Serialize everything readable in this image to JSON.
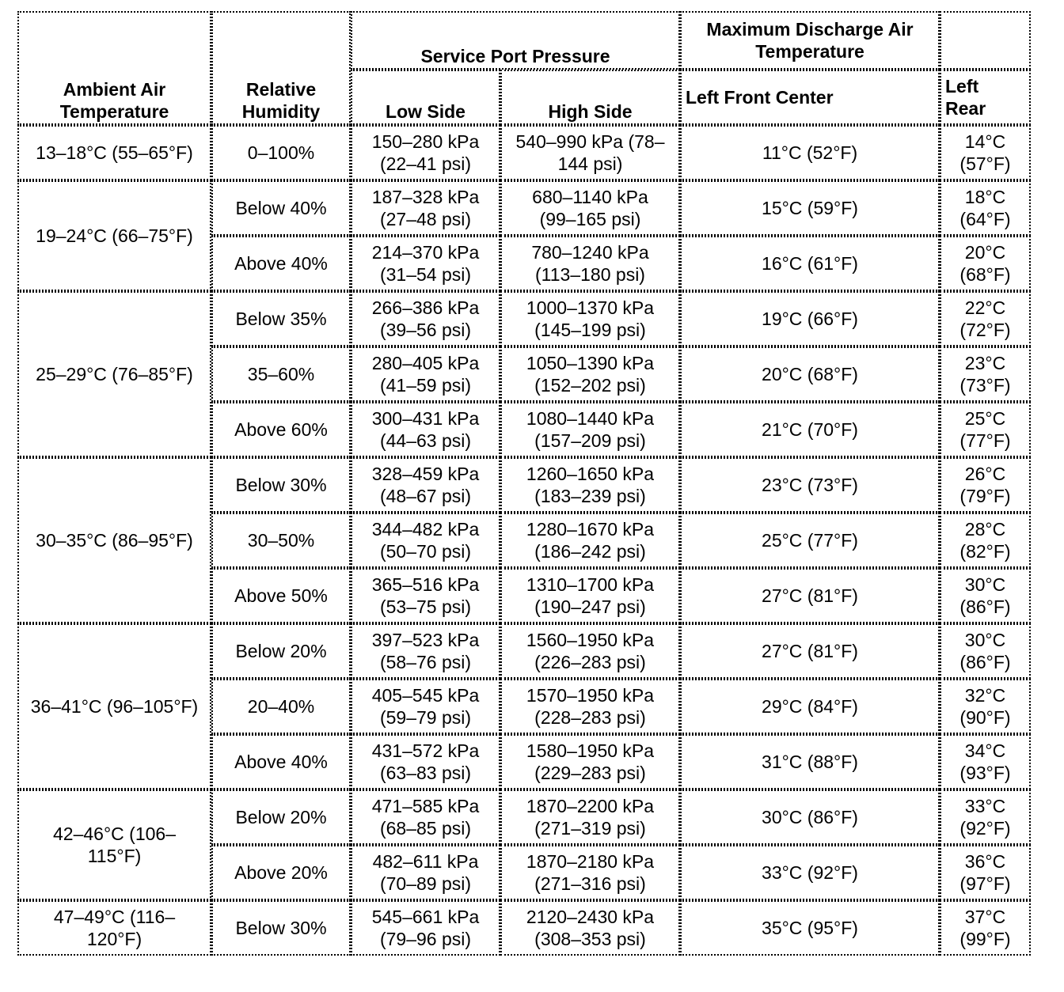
{
  "table": {
    "headers": {
      "ambient": "Ambient Air\nTemperature",
      "humidity": "Relative\nHumidity",
      "service_port": "Service Port Pressure",
      "max_discharge": "Maximum Discharge Air\nTemperature",
      "low_side": "Low Side",
      "high_side": "High Side",
      "left_front_center": "Left Front Center",
      "left_rear": "Left\nRear"
    },
    "groups": [
      {
        "ambient": "13–18°C (55–65°F)",
        "rows": [
          {
            "humidity": "0–100%",
            "low": "150–280 kPa\n(22–41 psi)",
            "high": "540–990 kPa (78–\n144 psi)",
            "lfc": "11°C (52°F)",
            "lr": "14°C\n(57°F)"
          }
        ]
      },
      {
        "ambient": "19–24°C (66–75°F)",
        "rows": [
          {
            "humidity": "Below 40%",
            "low": "187–328 kPa\n(27–48 psi)",
            "high": "680–1140 kPa\n(99–165 psi)",
            "lfc": "15°C (59°F)",
            "lr": "18°C\n(64°F)"
          },
          {
            "humidity": "Above 40%",
            "low": "214–370 kPa\n(31–54 psi)",
            "high": "780–1240 kPa\n(113–180 psi)",
            "lfc": "16°C (61°F)",
            "lr": "20°C\n(68°F)"
          }
        ]
      },
      {
        "ambient": "25–29°C (76–85°F)",
        "rows": [
          {
            "humidity": "Below 35%",
            "low": "266–386 kPa\n(39–56 psi)",
            "high": "1000–1370 kPa\n(145–199 psi)",
            "lfc": "19°C (66°F)",
            "lr": "22°C\n(72°F)"
          },
          {
            "humidity": "35–60%",
            "low": "280–405 kPa\n(41–59 psi)",
            "high": "1050–1390 kPa\n(152–202 psi)",
            "lfc": "20°C (68°F)",
            "lr": "23°C\n(73°F)"
          },
          {
            "humidity": "Above 60%",
            "low": "300–431 kPa\n(44–63 psi)",
            "high": "1080–1440 kPa\n(157–209 psi)",
            "lfc": "21°C (70°F)",
            "lr": "25°C\n(77°F)"
          }
        ]
      },
      {
        "ambient": "30–35°C (86–95°F)",
        "rows": [
          {
            "humidity": "Below 30%",
            "low": "328–459 kPa\n(48–67 psi)",
            "high": "1260–1650 kPa\n(183–239 psi)",
            "lfc": "23°C (73°F)",
            "lr": "26°C\n(79°F)"
          },
          {
            "humidity": "30–50%",
            "low": "344–482 kPa\n(50–70 psi)",
            "high": "1280–1670 kPa\n(186–242 psi)",
            "lfc": "25°C (77°F)",
            "lr": "28°C\n(82°F)"
          },
          {
            "humidity": "Above 50%",
            "low": "365–516 kPa\n(53–75 psi)",
            "high": "1310–1700 kPa\n(190–247 psi)",
            "lfc": "27°C (81°F)",
            "lr": "30°C\n(86°F)"
          }
        ]
      },
      {
        "ambient": "36–41°C (96–105°F)",
        "rows": [
          {
            "humidity": "Below 20%",
            "low": "397–523 kPa\n(58–76 psi)",
            "high": "1560–1950 kPa\n(226–283 psi)",
            "lfc": "27°C (81°F)",
            "lr": "30°C\n(86°F)"
          },
          {
            "humidity": "20–40%",
            "low": "405–545 kPa\n(59–79 psi)",
            "high": "1570–1950 kPa\n(228–283 psi)",
            "lfc": "29°C (84°F)",
            "lr": "32°C\n(90°F)"
          },
          {
            "humidity": "Above 40%",
            "low": "431–572 kPa\n(63–83 psi)",
            "high": "1580–1950 kPa\n(229–283 psi)",
            "lfc": "31°C (88°F)",
            "lr": "34°C\n(93°F)"
          }
        ]
      },
      {
        "ambient": "42–46°C (106–\n115°F)",
        "rows": [
          {
            "humidity": "Below 20%",
            "low": "471–585 kPa\n(68–85 psi)",
            "high": "1870–2200 kPa\n(271–319 psi)",
            "lfc": "30°C (86°F)",
            "lr": "33°C\n(92°F)"
          },
          {
            "humidity": "Above 20%",
            "low": "482–611 kPa\n(70–89 psi)",
            "high": "1870–2180 kPa\n(271–316 psi)",
            "lfc": "33°C (92°F)",
            "lr": "36°C\n(97°F)"
          }
        ]
      },
      {
        "ambient": "47–49°C (116–\n120°F)",
        "rows": [
          {
            "humidity": "Below 30%",
            "low": "545–661 kPa\n(79–96 psi)",
            "high": "2120–2430 kPa\n(308–353 psi)",
            "lfc": "35°C (95°F)",
            "lr": "37°C\n(99°F)"
          }
        ]
      }
    ]
  }
}
